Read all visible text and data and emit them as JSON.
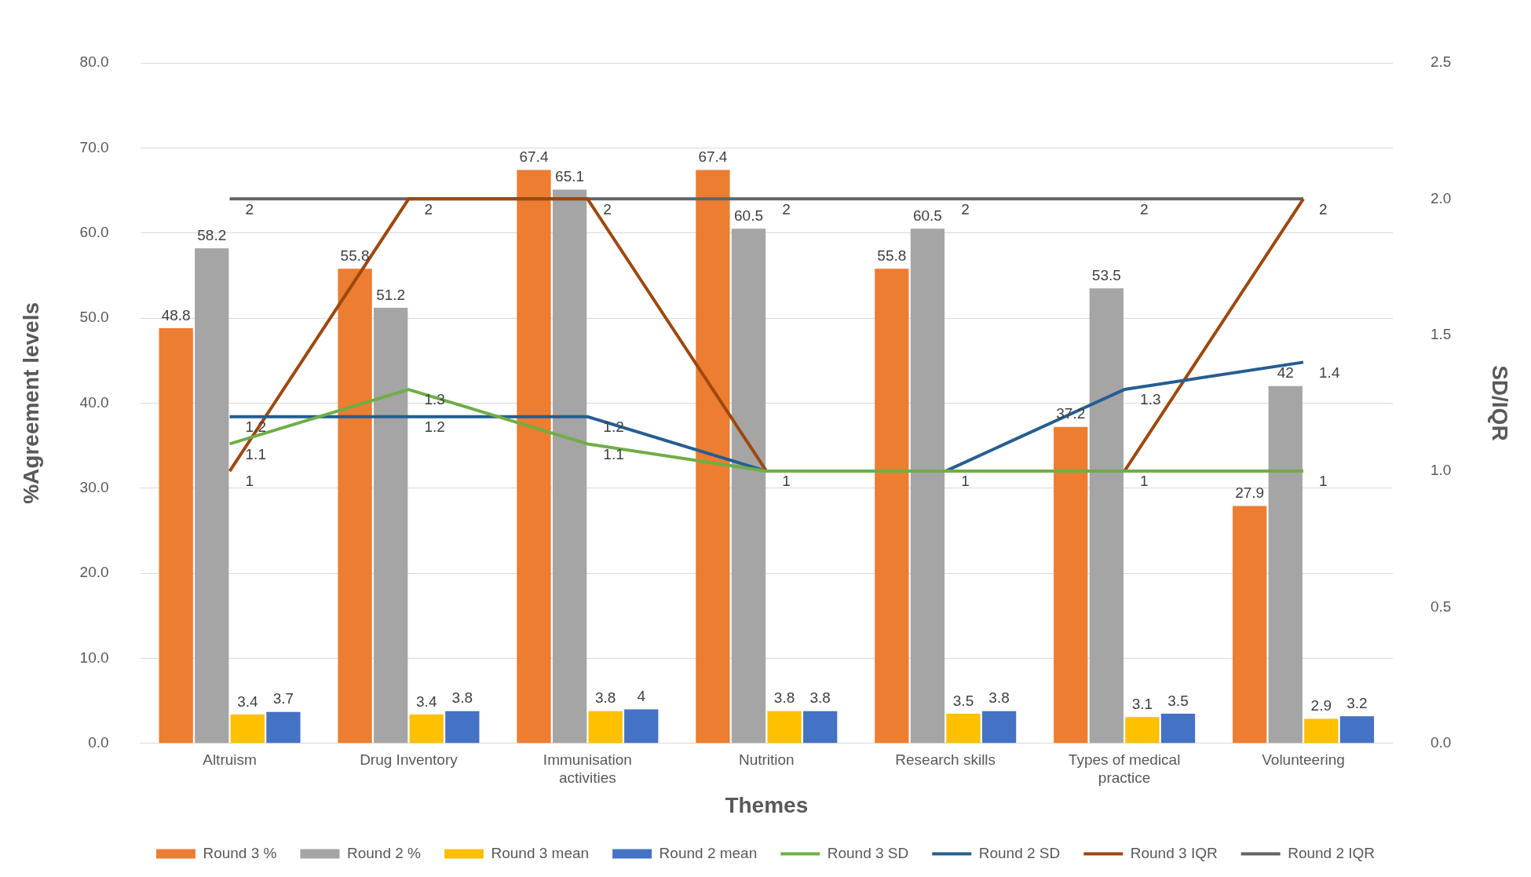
{
  "chart_data": {
    "type": "bar",
    "xlabel": "Themes",
    "ylabel": "%Agreement levels",
    "y2label": "SD/IQR",
    "categories": [
      "Altruism",
      "Drug Inventory",
      "Immunisation activities",
      "Nutrition",
      "Research skills",
      "Types of medical practice",
      "Volunteering"
    ],
    "series": [
      {
        "name": "Round 3 %",
        "color": "#ed7d31",
        "values": [
          48.8,
          55.8,
          67.4,
          67.4,
          55.8,
          37.2,
          27.9
        ]
      },
      {
        "name": "Round 2 %",
        "color": "#a5a5a5",
        "values": [
          58.2,
          51.2,
          65.1,
          60.5,
          60.5,
          53.5,
          42
        ]
      },
      {
        "name": "Round 3 mean",
        "color": "#ffc000",
        "values": [
          3.4,
          3.4,
          3.8,
          3.8,
          3.5,
          3.1,
          2.9
        ]
      },
      {
        "name": "Round 2 mean",
        "color": "#4472c4",
        "values": [
          3.7,
          3.8,
          4,
          3.8,
          3.8,
          3.5,
          3.2
        ]
      },
      {
        "name": "Round 3 SD",
        "type": "line",
        "axis": "y2",
        "color": "#70ad47",
        "values": [
          1.1,
          1.3,
          1.1,
          1,
          1,
          1,
          1
        ]
      },
      {
        "name": "Round 2 SD",
        "type": "line",
        "axis": "y2",
        "color": "#255e91",
        "values": [
          1.2,
          1.2,
          1.2,
          1,
          1,
          1.3,
          1.4
        ],
        "value_labels": [
          "1.2",
          "1.2",
          "1.2",
          null,
          null,
          "1.3",
          "1.4"
        ]
      },
      {
        "name": "Round 3 IQR",
        "type": "line",
        "axis": "y2",
        "color": "#9e480e",
        "values": [
          1,
          2,
          2,
          1,
          1,
          1,
          2
        ],
        "value_labels": [
          "1",
          null,
          null,
          null,
          null,
          null,
          "2"
        ]
      },
      {
        "name": "Round 2 IQR",
        "type": "line",
        "axis": "y2",
        "color": "#636363",
        "values": [
          2,
          2,
          2,
          2,
          2,
          2,
          2
        ],
        "value_labels": [
          "2",
          "2",
          "2",
          "2",
          "2",
          "2",
          null
        ]
      }
    ],
    "ylim": [
      0,
      80
    ],
    "yticks": [
      {
        "value": 0,
        "label": "0.0"
      },
      {
        "value": 10,
        "label": "10.0"
      },
      {
        "value": 20,
        "label": "20.0"
      },
      {
        "value": 30,
        "label": "30.0"
      },
      {
        "value": 40,
        "label": "40.0"
      },
      {
        "value": 50,
        "label": "50.0"
      },
      {
        "value": 60,
        "label": "60.0"
      },
      {
        "value": 70,
        "label": "70.0"
      },
      {
        "value": 80,
        "label": "80.0"
      }
    ],
    "y2lim": [
      0,
      2.5
    ],
    "y2ticks": [
      {
        "value": 0,
        "label": "0.0"
      },
      0.5,
      {
        "value": 1,
        "label": "1.0"
      },
      1.5,
      {
        "value": 2,
        "label": "2.0"
      },
      2.5
    ],
    "grid": "y",
    "legend": "bottom",
    "data_labels": true,
    "marker": "none"
  }
}
